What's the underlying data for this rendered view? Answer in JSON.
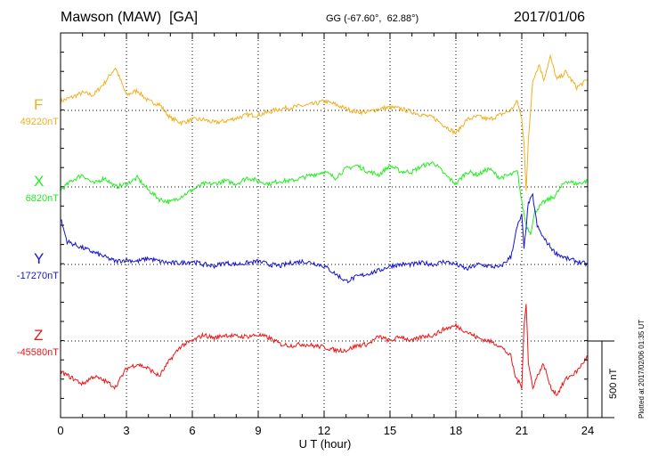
{
  "header": {
    "station": "Mawson (MAW)  [GA]",
    "coords": "GG (-67.60°,  62.88°)",
    "date": "2017/01/06"
  },
  "footer": {
    "plotted_at": "Plotted at 2017/02/06 01:35 UT"
  },
  "chart_data": {
    "type": "line",
    "xlabel": "U T (hour)",
    "xlim": [
      0,
      24
    ],
    "x_ticks": [
      "0",
      "3",
      "6",
      "9",
      "12",
      "15",
      "18",
      "21",
      "24"
    ],
    "scale_bar": "500 nT",
    "grid": true,
    "series": [
      {
        "name": "F",
        "baseline": "49220nT",
        "color": "#f0b020",
        "x": [
          0,
          0.5,
          1,
          1.5,
          2,
          2.5,
          3,
          3.5,
          4,
          4.5,
          5,
          5.5,
          6,
          6.5,
          7,
          7.5,
          8,
          8.5,
          9,
          9.5,
          10,
          10.5,
          11,
          11.5,
          12,
          12.5,
          13,
          13.5,
          14,
          14.5,
          15,
          15.5,
          16,
          16.5,
          17,
          17.5,
          18,
          18.5,
          19,
          19.5,
          20,
          20.5,
          20.8,
          21,
          21.1,
          21.2,
          21.3,
          21.5,
          21.8,
          22,
          22.3,
          22.6,
          23,
          23.5,
          24
        ],
        "values": [
          60,
          85,
          115,
          100,
          180,
          280,
          100,
          130,
          60,
          40,
          -50,
          -80,
          -60,
          -60,
          -80,
          -70,
          -50,
          -30,
          -30,
          -10,
          10,
          20,
          30,
          40,
          60,
          40,
          10,
          -10,
          -10,
          10,
          20,
          10,
          -10,
          -30,
          -50,
          -100,
          -150,
          -60,
          -40,
          -60,
          -30,
          0,
          60,
          -60,
          -200,
          -520,
          -200,
          200,
          300,
          200,
          350,
          200,
          250,
          150,
          200
        ]
      },
      {
        "name": "X",
        "baseline": "6820nT",
        "color": "#22ee22",
        "x": [
          0,
          0.5,
          1,
          1.5,
          2,
          2.5,
          3,
          3.5,
          4,
          4.5,
          5,
          5.5,
          6,
          6.5,
          7,
          7.5,
          8,
          8.5,
          9,
          9.5,
          10,
          10.5,
          11,
          11.5,
          12,
          12.5,
          13,
          13.5,
          14,
          14.5,
          15,
          15.5,
          16,
          16.5,
          17,
          17.5,
          18,
          18.5,
          19,
          19.5,
          20,
          20.5,
          20.8,
          21,
          21.2,
          21.4,
          21.6,
          22,
          22.5,
          23,
          23.5,
          24
        ],
        "values": [
          -20,
          40,
          80,
          20,
          60,
          0,
          20,
          60,
          -20,
          -80,
          -100,
          -60,
          -20,
          20,
          20,
          40,
          20,
          60,
          40,
          20,
          40,
          40,
          60,
          80,
          100,
          60,
          120,
          140,
          100,
          80,
          140,
          100,
          100,
          140,
          160,
          80,
          20,
          100,
          80,
          120,
          60,
          80,
          100,
          -100,
          -250,
          -300,
          -160,
          -100,
          -60,
          40,
          20,
          40
        ]
      },
      {
        "name": "Y",
        "baseline": "-17270nT",
        "color": "#1515d0",
        "x": [
          0,
          0.3,
          0.8,
          1.5,
          2,
          2.5,
          3,
          3.5,
          4,
          4.5,
          5,
          5.5,
          6,
          6.5,
          7,
          7.5,
          8,
          8.5,
          9,
          9.5,
          10,
          10.5,
          11,
          11.5,
          12,
          12.5,
          13,
          13.5,
          14,
          14.5,
          15,
          15.5,
          16,
          16.5,
          17,
          17.5,
          18,
          18.5,
          19,
          19.5,
          20,
          20.5,
          20.8,
          21,
          21.1,
          21.3,
          21.5,
          21.7,
          22,
          22.5,
          23,
          23.5,
          24
        ],
        "values": [
          300,
          150,
          120,
          80,
          50,
          20,
          30,
          20,
          40,
          20,
          10,
          10,
          20,
          0,
          -10,
          10,
          0,
          10,
          20,
          0,
          -10,
          10,
          20,
          10,
          -10,
          -60,
          -110,
          -80,
          -60,
          -40,
          -10,
          0,
          0,
          10,
          0,
          20,
          0,
          -30,
          0,
          -10,
          -20,
          50,
          250,
          320,
          100,
          400,
          450,
          250,
          170,
          80,
          40,
          20,
          0
        ]
      },
      {
        "name": "Z",
        "baseline": "-45580nT",
        "color": "#ee1515",
        "x": [
          0,
          0.5,
          1,
          1.5,
          2,
          2.5,
          3,
          3.5,
          4,
          4.5,
          5,
          5.5,
          6,
          6.5,
          7,
          7.5,
          8,
          8.5,
          9,
          9.5,
          10,
          10.5,
          11,
          11.5,
          12,
          12.5,
          13,
          13.5,
          14,
          14.5,
          15,
          15.5,
          16,
          16.5,
          17,
          17.5,
          18,
          18.5,
          19,
          19.5,
          20,
          20.5,
          20.7,
          21,
          21.1,
          21.2,
          21.3,
          21.5,
          21.8,
          22,
          22.3,
          22.6,
          23,
          23.5,
          24
        ],
        "values": [
          -200,
          -240,
          -280,
          -230,
          -260,
          -300,
          -180,
          -150,
          -180,
          -230,
          -120,
          -30,
          0,
          40,
          20,
          40,
          30,
          30,
          40,
          20,
          -20,
          -30,
          -20,
          -30,
          -40,
          -60,
          -60,
          -30,
          -20,
          30,
          0,
          30,
          0,
          30,
          40,
          80,
          100,
          60,
          20,
          0,
          -30,
          -100,
          -230,
          -300,
          100,
          250,
          -150,
          -300,
          -200,
          -150,
          -300,
          -350,
          -250,
          -200,
          -100
        ]
      }
    ]
  }
}
